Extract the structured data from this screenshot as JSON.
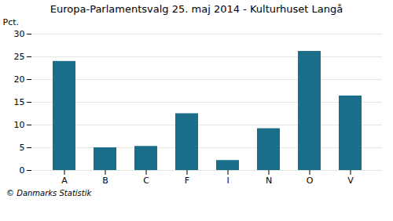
{
  "chart_data": {
    "type": "bar",
    "title": "Europa-Parlamentsvalg 25. maj 2014 - Kulturhuset Langå",
    "categories": [
      "A",
      "B",
      "C",
      "F",
      "I",
      "N",
      "O",
      "V"
    ],
    "values": [
      24.0,
      5.0,
      5.3,
      12.5,
      2.2,
      9.2,
      26.2,
      16.4
    ],
    "color": "#1a6e8a",
    "ylabel": "Pct.",
    "ylim": [
      0,
      30
    ],
    "yticks": [
      0,
      5,
      10,
      15,
      20,
      25,
      30
    ],
    "grid": true,
    "caption": "© Danmarks Statistik"
  }
}
